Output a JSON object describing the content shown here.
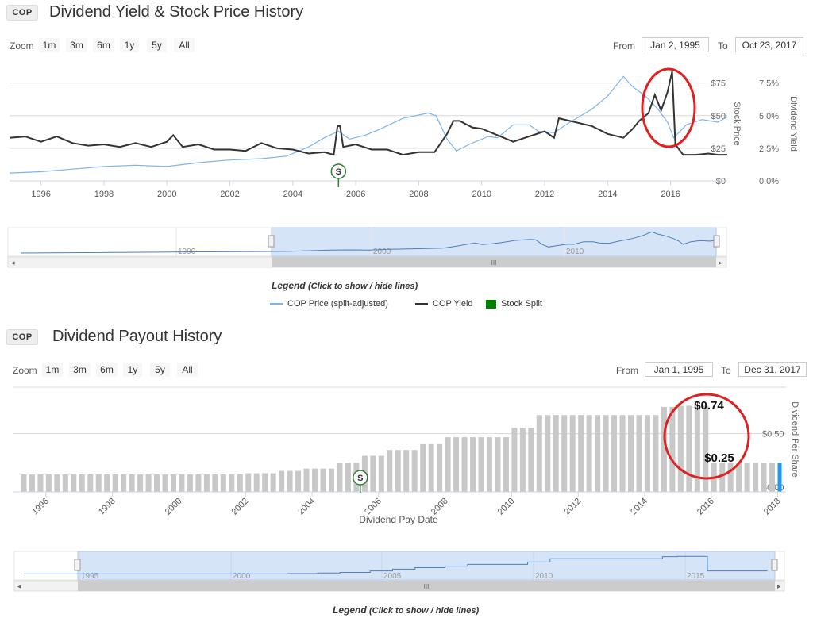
{
  "chart1": {
    "ticker": "COP",
    "title": "Dividend Yield & Stock Price History",
    "zoom_label": "Zoom",
    "zoom_buttons": [
      "1m",
      "3m",
      "6m",
      "1y",
      "5y",
      "All"
    ],
    "from_label": "From",
    "from_value": "Jan 2, 1995",
    "to_label": "To",
    "to_value": "Oct 23, 2017",
    "left_axis_title": "Stock Price",
    "right_axis_title": "Dividend Yield",
    "navigator_years": [
      "1990",
      "2000",
      "2010"
    ],
    "navigator_grip": "III",
    "legend_title": "Legend",
    "legend_hint": "(Click to show / hide lines)",
    "legend": [
      {
        "label": "COP Price (split-adjusted)",
        "color": "#7cb5ec"
      },
      {
        "label": "COP Yield",
        "color": "#333333"
      },
      {
        "label": "Stock Split",
        "color": "#008000"
      }
    ],
    "split_marker": "S"
  },
  "chart2": {
    "ticker": "COP",
    "title": "Dividend Payout History",
    "zoom_label": "Zoom",
    "zoom_buttons": [
      "1m",
      "3m",
      "6m",
      "1y",
      "5y",
      "All"
    ],
    "from_label": "From",
    "from_value": "Jan 1, 1995",
    "to_label": "To",
    "to_value": "Dec 31, 2017",
    "right_axis_title": "Dividend Per Share",
    "x_axis_title": "Dividend Pay Date",
    "navigator_years": [
      "1995",
      "2000",
      "2005",
      "2010",
      "2015"
    ],
    "navigator_grip": "III",
    "legend_title": "Legend",
    "legend_hint": "(Click to show / hide lines)",
    "split_marker": "S",
    "annotation_high": "$0.74",
    "annotation_low": "$0.25",
    "bar_color": "#c8c8c8",
    "highlight_color": "#2196f3"
  },
  "chart_data": [
    {
      "type": "line",
      "title": "Dividend Yield & Stock Price History",
      "x_range": [
        1995.0,
        2017.8
      ],
      "x_ticks": [
        "1996",
        "1998",
        "2000",
        "2002",
        "2004",
        "2006",
        "2008",
        "2010",
        "2012",
        "2014",
        "2016"
      ],
      "left_axis": {
        "label": "Stock Price",
        "ticks": [
          "$0",
          "$25",
          "$50",
          "$75"
        ],
        "range": [
          0,
          90
        ]
      },
      "right_axis": {
        "label": "Dividend Yield",
        "ticks": [
          "0.0%",
          "2.5%",
          "5.0%",
          "7.5%"
        ],
        "range": [
          0,
          9
        ]
      },
      "split_date": 2005.45,
      "series": [
        {
          "name": "COP Price (split-adjusted)",
          "axis": "left",
          "color": "#7cb5ec",
          "points": [
            [
              1995.0,
              6
            ],
            [
              1996.0,
              7
            ],
            [
              1997.0,
              9
            ],
            [
              1998.0,
              11
            ],
            [
              1999.0,
              12
            ],
            [
              2000.0,
              11
            ],
            [
              2001.0,
              14
            ],
            [
              2002.0,
              16
            ],
            [
              2003.0,
              17
            ],
            [
              2003.8,
              19
            ],
            [
              2004.5,
              26
            ],
            [
              2005.0,
              33
            ],
            [
              2005.45,
              38
            ],
            [
              2005.8,
              32
            ],
            [
              2006.3,
              35
            ],
            [
              2006.8,
              40
            ],
            [
              2007.5,
              48
            ],
            [
              2008.3,
              52
            ],
            [
              2008.55,
              50
            ],
            [
              2008.9,
              32
            ],
            [
              2009.2,
              23
            ],
            [
              2009.6,
              28
            ],
            [
              2010.2,
              34
            ],
            [
              2010.5,
              33
            ],
            [
              2011.0,
              43
            ],
            [
              2011.5,
              43
            ],
            [
              2011.8,
              38
            ],
            [
              2012.3,
              37
            ],
            [
              2012.8,
              45
            ],
            [
              2013.5,
              55
            ],
            [
              2014.0,
              65
            ],
            [
              2014.5,
              80
            ],
            [
              2014.8,
              72
            ],
            [
              2015.2,
              65
            ],
            [
              2015.6,
              55
            ],
            [
              2015.9,
              45
            ],
            [
              2016.1,
              33
            ],
            [
              2016.5,
              43
            ],
            [
              2017.0,
              47
            ],
            [
              2017.5,
              45
            ],
            [
              2017.8,
              49
            ]
          ]
        },
        {
          "name": "COP Yield",
          "axis": "right",
          "color": "#333333",
          "points": [
            [
              1995.0,
              3.3
            ],
            [
              1995.5,
              3.4
            ],
            [
              1996.0,
              3.0
            ],
            [
              1996.5,
              3.4
            ],
            [
              1997.0,
              2.9
            ],
            [
              1997.5,
              2.7
            ],
            [
              1998.0,
              2.8
            ],
            [
              1998.5,
              2.6
            ],
            [
              1999.0,
              2.9
            ],
            [
              1999.5,
              2.6
            ],
            [
              2000.0,
              3.0
            ],
            [
              2000.2,
              3.5
            ],
            [
              2000.5,
              2.6
            ],
            [
              2001.0,
              2.8
            ],
            [
              2001.5,
              2.4
            ],
            [
              2002.0,
              2.4
            ],
            [
              2002.5,
              2.3
            ],
            [
              2003.0,
              2.9
            ],
            [
              2003.5,
              2.5
            ],
            [
              2004.0,
              2.4
            ],
            [
              2004.5,
              2.1
            ],
            [
              2005.0,
              2.2
            ],
            [
              2005.3,
              2.0
            ],
            [
              2005.42,
              4.2
            ],
            [
              2005.5,
              4.2
            ],
            [
              2005.6,
              2.6
            ],
            [
              2006.0,
              2.8
            ],
            [
              2006.5,
              2.4
            ],
            [
              2007.0,
              2.4
            ],
            [
              2007.5,
              2.0
            ],
            [
              2008.0,
              2.2
            ],
            [
              2008.5,
              2.2
            ],
            [
              2008.9,
              3.6
            ],
            [
              2009.1,
              4.6
            ],
            [
              2009.3,
              4.6
            ],
            [
              2009.7,
              4.1
            ],
            [
              2010.0,
              4.0
            ],
            [
              2010.5,
              3.5
            ],
            [
              2011.0,
              3.0
            ],
            [
              2011.5,
              3.4
            ],
            [
              2012.0,
              3.8
            ],
            [
              2012.3,
              3.3
            ],
            [
              2012.45,
              4.8
            ],
            [
              2012.8,
              4.6
            ],
            [
              2013.5,
              4.2
            ],
            [
              2014.0,
              3.6
            ],
            [
              2014.5,
              3.3
            ],
            [
              2014.8,
              4.0
            ],
            [
              2015.0,
              4.6
            ],
            [
              2015.3,
              5.2
            ],
            [
              2015.5,
              6.6
            ],
            [
              2015.7,
              5.4
            ],
            [
              2015.9,
              6.8
            ],
            [
              2016.05,
              8.4
            ],
            [
              2016.15,
              2.8
            ],
            [
              2016.4,
              2.0
            ],
            [
              2016.8,
              2.0
            ],
            [
              2017.2,
              2.1
            ],
            [
              2017.5,
              2.0
            ],
            [
              2017.8,
              2.0
            ]
          ]
        }
      ]
    },
    {
      "type": "bar",
      "title": "Dividend Payout History",
      "x_axis_label": "Dividend Pay Date",
      "y_axis_label": "Dividend Per Share",
      "x_ticks": [
        "1996",
        "1998",
        "2000",
        "2002",
        "2004",
        "2006",
        "2008",
        "2010",
        "2012",
        "2014",
        "2016",
        "2018"
      ],
      "y_ticks": [
        "$0.00",
        "$0.50"
      ],
      "y_range": [
        0,
        0.9
      ],
      "x_range": [
        1995.0,
        2018.25
      ],
      "split_date": 2005.45,
      "segments": [
        {
          "from": 1995.25,
          "to": 2002.0,
          "value": 0.15
        },
        {
          "from": 2002.0,
          "to": 2003.0,
          "value": 0.16
        },
        {
          "from": 2003.0,
          "to": 2003.75,
          "value": 0.18
        },
        {
          "from": 2003.75,
          "to": 2004.75,
          "value": 0.2
        },
        {
          "from": 2004.75,
          "to": 2005.5,
          "value": 0.25
        },
        {
          "from": 2005.5,
          "to": 2006.25,
          "value": 0.31
        },
        {
          "from": 2006.25,
          "to": 2007.25,
          "value": 0.36
        },
        {
          "from": 2007.25,
          "to": 2008.0,
          "value": 0.41
        },
        {
          "from": 2008.0,
          "to": 2010.0,
          "value": 0.47
        },
        {
          "from": 2010.0,
          "to": 2010.75,
          "value": 0.55
        },
        {
          "from": 2010.75,
          "to": 2011.25,
          "value": 0.66
        },
        {
          "from": 2011.25,
          "to": 2014.5,
          "value": 0.66
        },
        {
          "from": 2014.5,
          "to": 2015.0,
          "value": 0.73
        },
        {
          "from": 2015.0,
          "to": 2016.0,
          "value": 0.74
        },
        {
          "from": 2016.0,
          "to": 2018.0,
          "value": 0.25
        }
      ],
      "annotations": [
        {
          "label": "$0.74",
          "x": 2015.75,
          "value": 0.74
        },
        {
          "label": "$0.25",
          "x": 2016.25,
          "value": 0.25
        }
      ]
    }
  ]
}
